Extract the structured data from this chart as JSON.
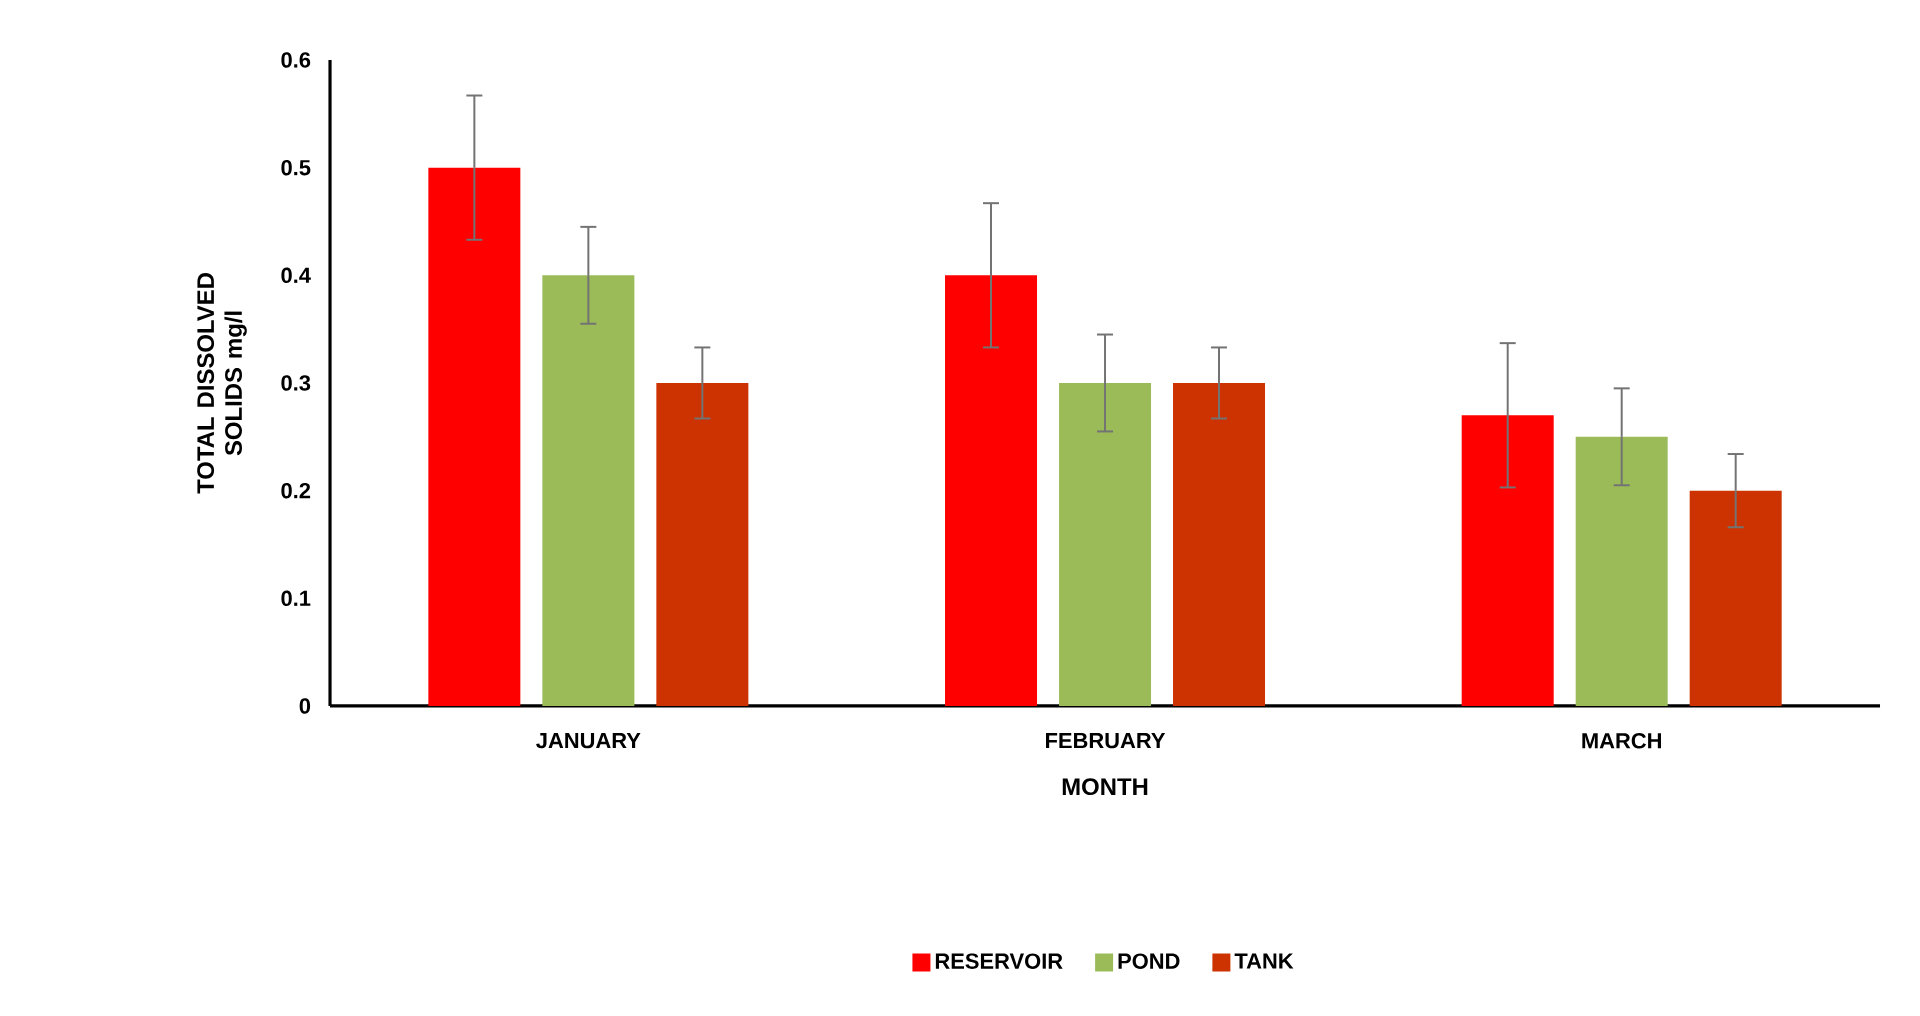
{
  "chart_data": {
    "type": "bar",
    "xlabel": "MONTH",
    "ylabel": "TOTAL DISSOLVED SOLIDS mg/l",
    "categories": [
      "JANUARY",
      "FEBRUARY",
      "MARCH"
    ],
    "ylim": [
      0,
      0.6
    ],
    "yticks": [
      0,
      0.1,
      0.2,
      0.3,
      0.4,
      0.5,
      0.6
    ],
    "grid": false,
    "legend": "bottom",
    "series": [
      {
        "name": "RESERVOIR",
        "color": "#ff0000",
        "values": [
          0.5,
          0.4,
          0.27
        ],
        "errors": [
          0.067,
          0.067,
          0.067
        ]
      },
      {
        "name": "POND",
        "color": "#9bbb59",
        "values": [
          0.4,
          0.3,
          0.25
        ],
        "errors": [
          0.045,
          0.045,
          0.045
        ]
      },
      {
        "name": "TANK",
        "color": "#cc3300",
        "values": [
          0.3,
          0.3,
          0.2
        ],
        "errors": [
          0.033,
          0.033,
          0.034
        ]
      }
    ]
  }
}
